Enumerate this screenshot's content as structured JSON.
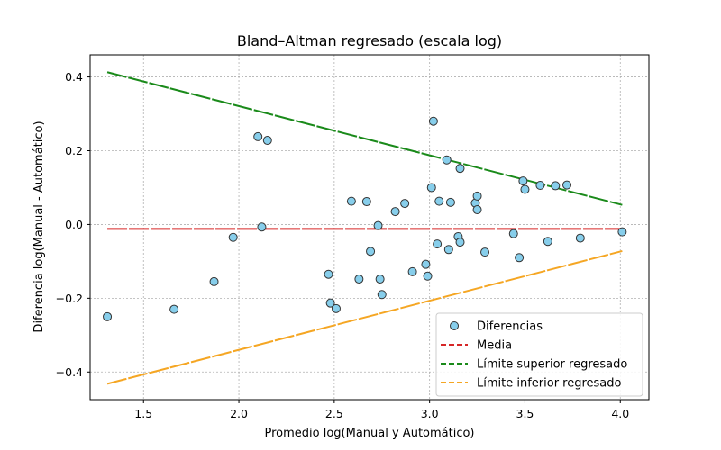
{
  "chart_data": {
    "type": "scatter",
    "title": "Bland–Altman regresado (escala log)",
    "xlabel": "Promedio log(Manual y Automático)",
    "ylabel": "Diferencia log(Manual - Automático)",
    "xlim": [
      1.22,
      4.15
    ],
    "ylim": [
      -0.475,
      0.46
    ],
    "xticks": [
      1.5,
      2.0,
      2.5,
      3.0,
      3.5,
      4.0
    ],
    "xtick_labels": [
      "1.5",
      "2.0",
      "2.5",
      "3.0",
      "3.5",
      "4.0"
    ],
    "yticks": [
      -0.4,
      -0.2,
      0.0,
      0.2,
      0.4
    ],
    "ytick_labels": [
      "−0.4",
      "−0.2",
      "0.0",
      "0.2",
      "0.4"
    ],
    "grid": true,
    "legend_position": "lower-right",
    "series": [
      {
        "name": "Diferencias",
        "kind": "scatter",
        "color": "#87ceeb",
        "edge_color": "#333333",
        "points": [
          [
            1.31,
            -0.25
          ],
          [
            1.66,
            -0.23
          ],
          [
            1.87,
            -0.155
          ],
          [
            1.97,
            -0.035
          ],
          [
            2.1,
            0.238
          ],
          [
            2.12,
            -0.007
          ],
          [
            2.15,
            0.228
          ],
          [
            2.47,
            -0.135
          ],
          [
            2.48,
            -0.213
          ],
          [
            2.51,
            -0.228
          ],
          [
            2.59,
            0.063
          ],
          [
            2.63,
            -0.148
          ],
          [
            2.67,
            0.062
          ],
          [
            2.69,
            -0.073
          ],
          [
            2.73,
            -0.003
          ],
          [
            2.74,
            -0.148
          ],
          [
            2.75,
            -0.19
          ],
          [
            2.82,
            0.035
          ],
          [
            2.87,
            0.057
          ],
          [
            2.91,
            -0.128
          ],
          [
            2.98,
            -0.108
          ],
          [
            2.99,
            -0.14
          ],
          [
            3.01,
            0.1
          ],
          [
            3.02,
            0.28
          ],
          [
            3.04,
            -0.053
          ],
          [
            3.05,
            0.063
          ],
          [
            3.09,
            0.175
          ],
          [
            3.1,
            -0.068
          ],
          [
            3.11,
            0.06
          ],
          [
            3.15,
            -0.033
          ],
          [
            3.16,
            -0.048
          ],
          [
            3.16,
            0.152
          ],
          [
            3.24,
            0.058
          ],
          [
            3.25,
            0.04
          ],
          [
            3.25,
            0.077
          ],
          [
            3.29,
            -0.075
          ],
          [
            3.44,
            -0.025
          ],
          [
            3.47,
            -0.09
          ],
          [
            3.49,
            0.118
          ],
          [
            3.5,
            0.095
          ],
          [
            3.58,
            0.106
          ],
          [
            3.62,
            -0.046
          ],
          [
            3.66,
            0.105
          ],
          [
            3.72,
            0.107
          ],
          [
            3.79,
            -0.037
          ],
          [
            4.01,
            -0.02
          ]
        ]
      },
      {
        "name": "Media",
        "kind": "line",
        "color": "#d62728",
        "points": [
          [
            1.31,
            -0.012
          ],
          [
            4.01,
            -0.012
          ]
        ]
      },
      {
        "name": "Límite superior regresado",
        "kind": "line",
        "color": "#1a8a1a",
        "points": [
          [
            1.31,
            0.413
          ],
          [
            4.01,
            0.053
          ]
        ]
      },
      {
        "name": "Límite inferior regresado",
        "kind": "line",
        "color": "#f5a623",
        "points": [
          [
            1.31,
            -0.432
          ],
          [
            4.01,
            -0.072
          ]
        ]
      }
    ]
  }
}
